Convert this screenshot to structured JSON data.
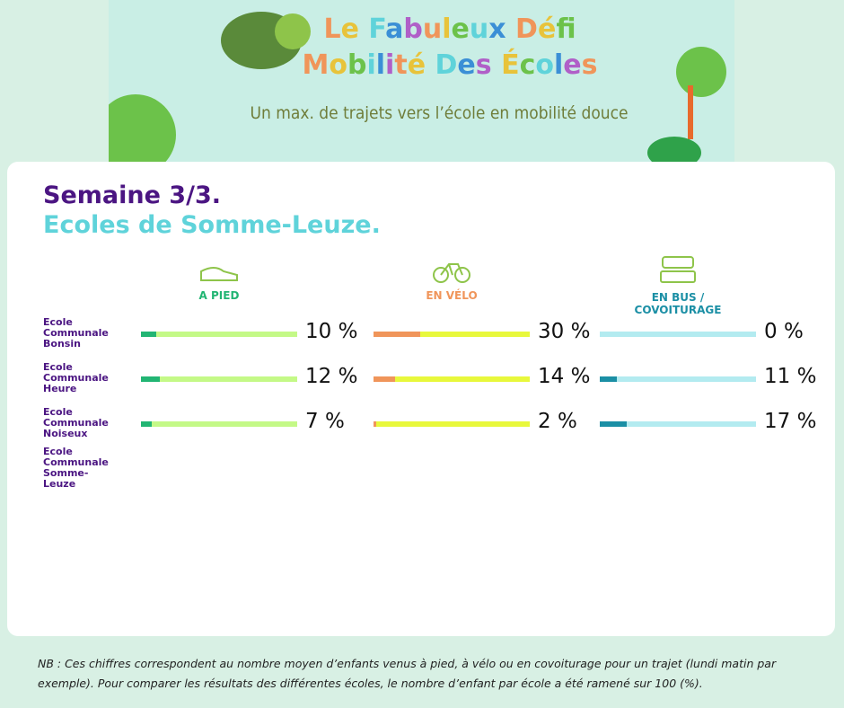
{
  "banner": {
    "title_line1": "Le Fabuleux Défi",
    "title_line2": "Mobilité Des Écoles",
    "tagline": "Un max. de trajets vers l’école en mobilité douce"
  },
  "card": {
    "title": "Semaine 3/3.",
    "subtitle": "Ecoles de Somme-Leuze."
  },
  "xlim": [
    0,
    100
  ],
  "columns": [
    {
      "label": "A PIED",
      "color": "#22b573",
      "track": "#c4f987"
    },
    {
      "label": "EN VÉLO",
      "color": "#f0955a",
      "track": "#e8f83c"
    },
    {
      "label": "EN BUS / COVOITURAGE",
      "color": "#1b8fa5",
      "track": "#b3ebf0"
    }
  ],
  "rows": [
    {
      "name": "Ecole Communale Bonsin",
      "values": [
        10,
        30,
        0
      ],
      "value_labels": [
        "10 %",
        "30 %",
        "0 %"
      ]
    },
    {
      "name": "Ecole Communale Heure",
      "values": [
        12,
        14,
        11
      ],
      "value_labels": [
        "12 %",
        "14 %",
        "11 %"
      ]
    },
    {
      "name": "Ecole Communale Noiseux",
      "values": [
        7,
        2,
        17
      ],
      "value_labels": [
        "7 %",
        "2 %",
        "17 %"
      ]
    },
    {
      "name": "Ecole Communale Somme-Leuze"
    }
  ],
  "footnote": "NB : Ces chiffres correspondent au nombre moyen d’enfants venus à pied, à vélo ou en covoiturage pour un trajet (lundi matin par exemple). Pour comparer les résultats des différentes écoles, le nombre d’enfant par école a été ramené sur 100 (%)."
}
